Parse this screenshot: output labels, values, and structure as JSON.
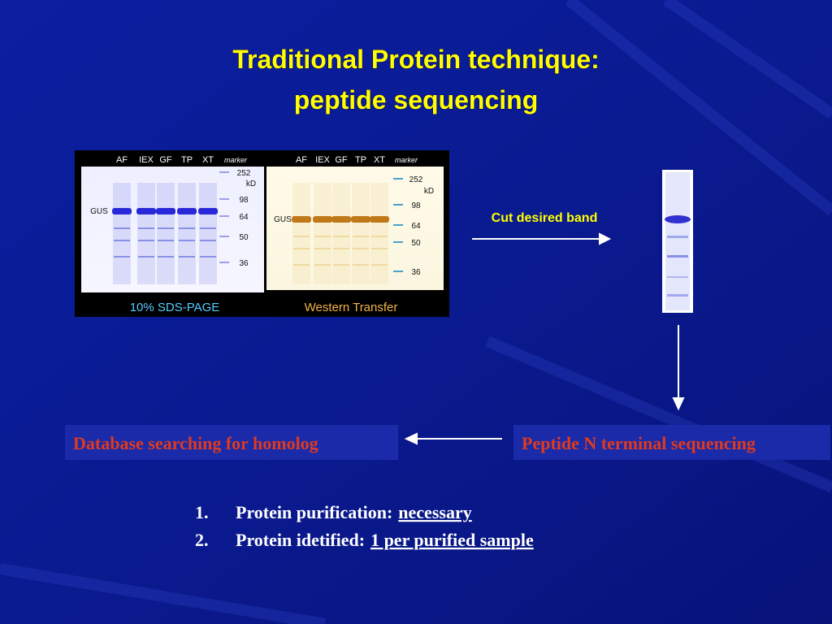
{
  "title": [
    "Traditional Protein technique:",
    "peptide sequencing"
  ],
  "gels": [
    {
      "lanes": [
        "AF",
        "IEX",
        "GF",
        "TP",
        "XT"
      ],
      "marker_label": "marker",
      "markers": [
        "252",
        "kD",
        "98",
        "64",
        "50",
        "36"
      ],
      "band_label": "GUS",
      "caption": "10% SDS-PAGE"
    },
    {
      "lanes": [
        "AF",
        "IEX",
        "GF",
        "TP",
        "XT"
      ],
      "marker_label": "marker",
      "markers": [
        "252",
        "kD",
        "98",
        "64",
        "50",
        "36"
      ],
      "band_label": "GUS",
      "caption": "Western Transfer"
    }
  ],
  "cut_label": "Cut desired band",
  "steps": {
    "database": "Database searching for homolog",
    "sequencing": "Peptide N terminal sequencing"
  },
  "list": [
    {
      "number": "1.",
      "label": "Protein purification:",
      "value": "necessary"
    },
    {
      "number": "2.",
      "label": "Protein idetified:",
      "value": "1 per purified sample"
    }
  ]
}
